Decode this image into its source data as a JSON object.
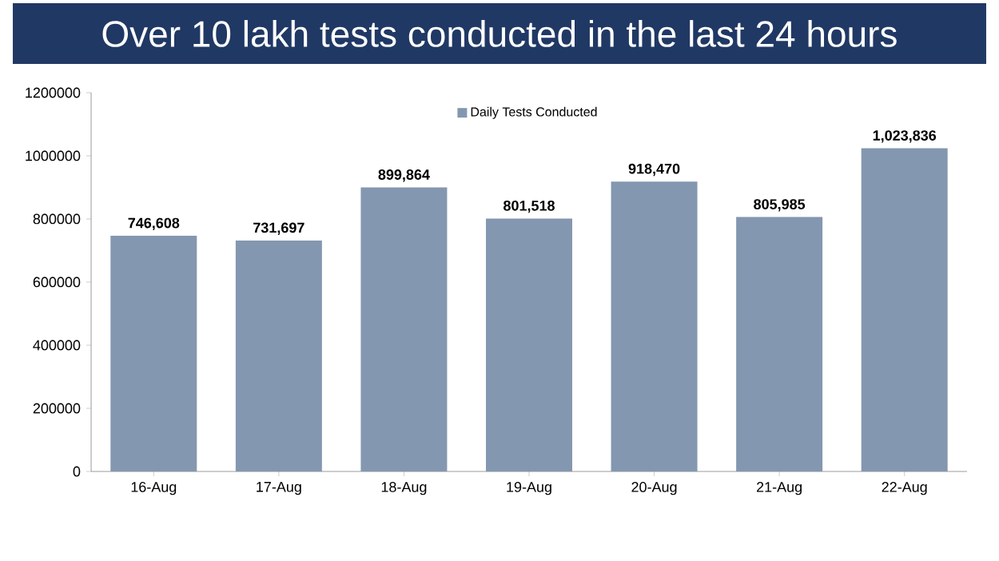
{
  "chart_data": {
    "type": "bar",
    "title": "Over 10 lakh tests conducted in the last 24 hours",
    "categories": [
      "16-Aug",
      "17-Aug",
      "18-Aug",
      "19-Aug",
      "20-Aug",
      "21-Aug",
      "22-Aug"
    ],
    "series": [
      {
        "name": "Daily Tests Conducted",
        "color": "#8497b0",
        "values": [
          746608,
          731697,
          899864,
          801518,
          918470,
          805985,
          1023836
        ],
        "value_labels": [
          "746,608",
          "731,697",
          "899,864",
          "801,518",
          "918,470",
          "805,985",
          "1,023,836"
        ]
      }
    ],
    "ylim": [
      0,
      1200000
    ],
    "yticks": [
      0,
      200000,
      400000,
      600000,
      800000,
      1000000,
      1200000
    ],
    "legend": "top",
    "grid": false
  }
}
